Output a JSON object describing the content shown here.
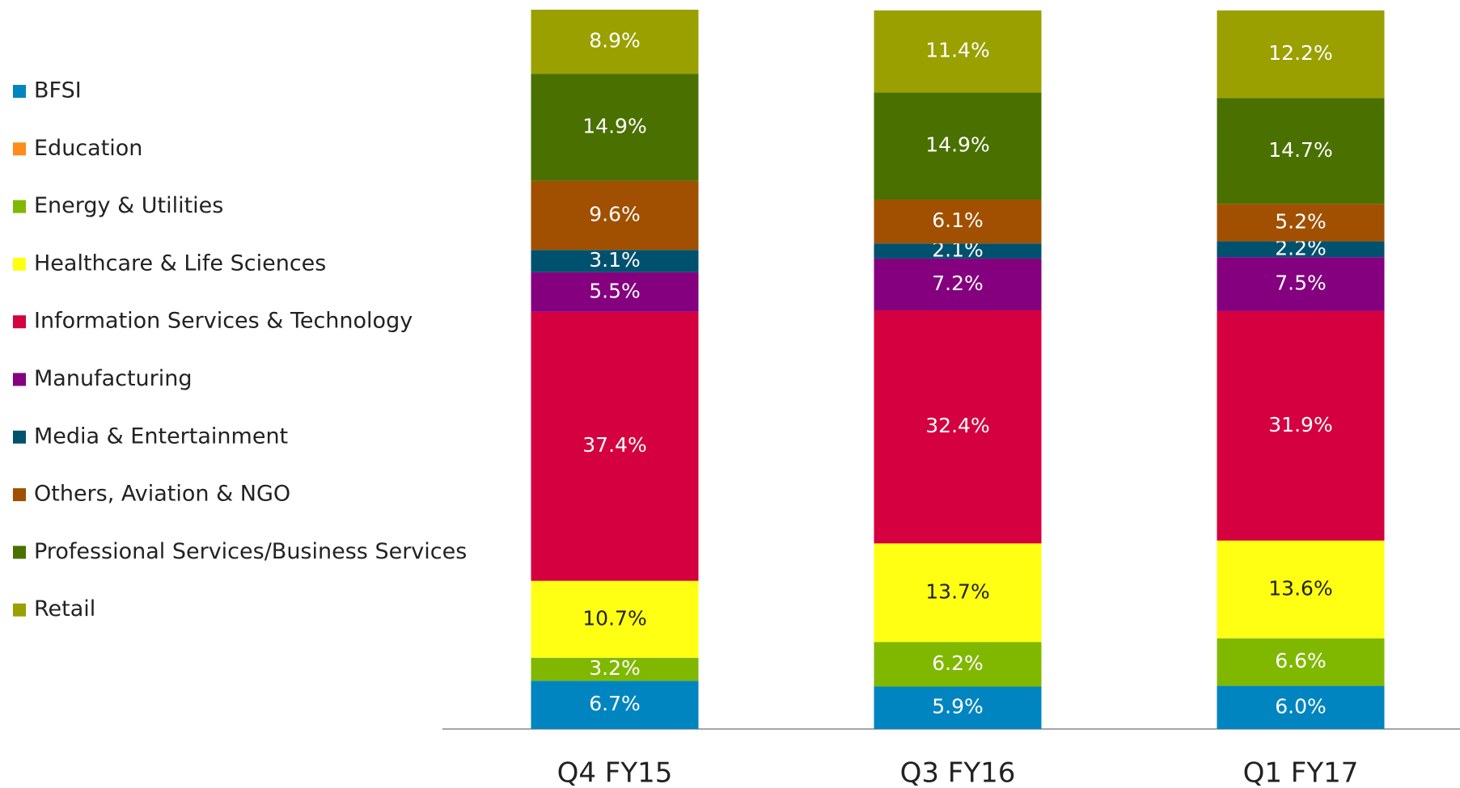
{
  "chart_data": {
    "type": "stacked_bar",
    "categories": [
      "Q4 FY15",
      "Q3 FY16",
      "Q1 FY17"
    ],
    "ylim": [
      0,
      100
    ],
    "legend": "left",
    "series": [
      {
        "name": "BFSI",
        "color": "#0085c0",
        "values": [
          6.7,
          5.9,
          6.0
        ],
        "value_labels": [
          "6.7%",
          "5.9%",
          "6.0%"
        ]
      },
      {
        "name": "Education",
        "color": "#ff8c1a",
        "values": [
          null,
          null,
          null
        ],
        "value_labels": [
          null,
          null,
          null
        ]
      },
      {
        "name": "Energy & Utilities",
        "color": "#80b800",
        "values": [
          3.2,
          6.2,
          6.6
        ],
        "value_labels": [
          "3.2%",
          "6.2%",
          "6.6%"
        ]
      },
      {
        "name": "Healthcare & Life Sciences",
        "color": "#ffff14",
        "values": [
          10.7,
          13.7,
          13.6
        ],
        "value_labels": [
          "10.7%",
          "13.7%",
          "13.6%"
        ]
      },
      {
        "name": "Information Services & Technology",
        "color": "#d4003f",
        "values": [
          37.4,
          32.4,
          31.9
        ],
        "value_labels": [
          "37.4%",
          "32.4%",
          "31.9%"
        ]
      },
      {
        "name": "Manufacturing",
        "color": "#84007e",
        "values": [
          5.5,
          7.2,
          7.5
        ],
        "value_labels": [
          "5.5%",
          "7.2%",
          "7.5%"
        ]
      },
      {
        "name": "Media & Entertainment",
        "color": "#00516e",
        "values": [
          3.1,
          2.1,
          2.2
        ],
        "value_labels": [
          "3.1%",
          "2.1%",
          "2.2%"
        ]
      },
      {
        "name": "Others, Aviation & NGO",
        "color": "#a05000",
        "values": [
          9.6,
          6.1,
          5.2
        ],
        "value_labels": [
          "9.6%",
          "6.1%",
          "5.2%"
        ]
      },
      {
        "name": "Professional Services/Business Services",
        "color": "#4a7000",
        "values": [
          14.9,
          14.9,
          14.7
        ],
        "value_labels": [
          "14.9%",
          "14.9%",
          "14.7%"
        ]
      },
      {
        "name": "Retail",
        "color": "#9aa000",
        "values": [
          8.9,
          11.4,
          12.2
        ],
        "value_labels": [
          "8.9%",
          "11.4%",
          "12.2%"
        ]
      }
    ]
  }
}
